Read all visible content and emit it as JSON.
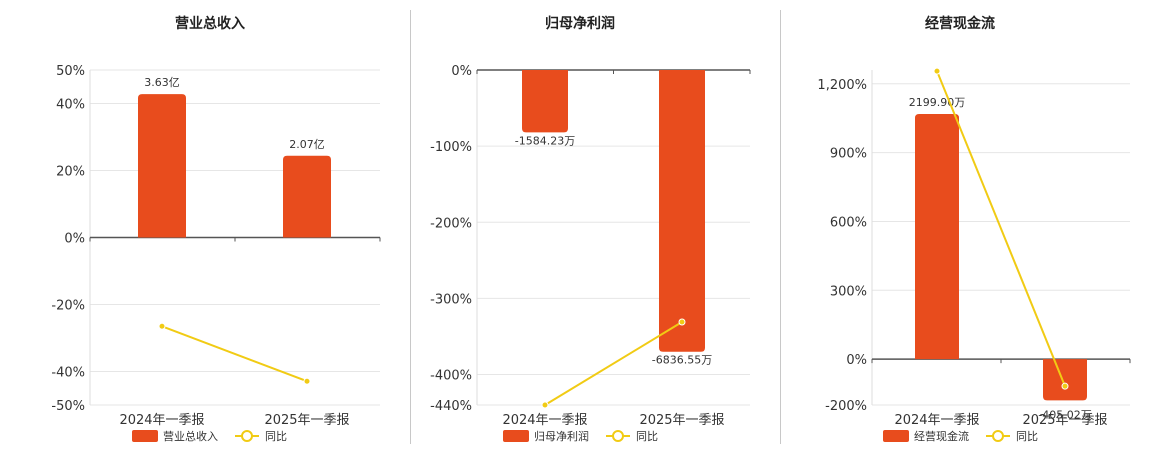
{
  "colors": {
    "bar": "#e84c1d",
    "line": "#f1cb14",
    "grid": "#e6e6e6",
    "axis": "#555555"
  },
  "chart_data": [
    {
      "type": "bar",
      "title": "营业总收入",
      "categories": [
        "2024年一季报",
        "2025年一季报"
      ],
      "ylim": [
        -50,
        50
      ],
      "yticks": [
        {
          "value": 50,
          "label": "50%"
        },
        {
          "value": 40,
          "label": "40%"
        },
        {
          "value": 20,
          "label": "20%"
        },
        {
          "value": 0,
          "label": "0%"
        },
        {
          "value": -20,
          "label": "-20%"
        },
        {
          "value": -40,
          "label": "-40%"
        },
        {
          "value": -50,
          "label": "-50%"
        }
      ],
      "series": [
        {
          "name": "营业总收入",
          "kind": "bar",
          "values": [
            3.63,
            2.07
          ],
          "data_labels": [
            "3.63亿",
            "2.07亿"
          ],
          "bar_pct": [
            42.8,
            24.4
          ]
        },
        {
          "name": "同比",
          "kind": "line",
          "values": [
            -26.5,
            -42.9
          ]
        }
      ],
      "legend": [
        "营业总收入",
        "同比"
      ],
      "legend_position": "bottom"
    },
    {
      "type": "bar",
      "title": "归母净利润",
      "categories": [
        "2024年一季报",
        "2025年一季报"
      ],
      "ylim": [
        -440,
        0
      ],
      "yticks": [
        {
          "value": 0,
          "label": "0%"
        },
        {
          "value": -100,
          "label": "-100%"
        },
        {
          "value": -200,
          "label": "-200%"
        },
        {
          "value": -300,
          "label": "-300%"
        },
        {
          "value": -400,
          "label": "-400%"
        },
        {
          "value": -440,
          "label": "-440%"
        }
      ],
      "series": [
        {
          "name": "归母净利润",
          "kind": "bar",
          "values": [
            -1584.23,
            -6836.55
          ],
          "data_labels": [
            "-1584.23万",
            "-6836.55万"
          ],
          "bar_pct": [
            -82,
            -370
          ]
        },
        {
          "name": "同比",
          "kind": "line",
          "values": [
            -440,
            -331
          ]
        }
      ],
      "legend": [
        "归母净利润",
        "同比"
      ],
      "legend_position": "bottom"
    },
    {
      "type": "bar",
      "title": "经营现金流",
      "categories": [
        "2024年一季报",
        "2025年一季报"
      ],
      "ylim": [
        -200,
        1260
      ],
      "yticks": [
        {
          "value": 1200,
          "label": "1,200%"
        },
        {
          "value": 900,
          "label": "900%"
        },
        {
          "value": 600,
          "label": "600%"
        },
        {
          "value": 300,
          "label": "300%"
        },
        {
          "value": 0,
          "label": "0%"
        },
        {
          "value": -200,
          "label": "-200%"
        }
      ],
      "series": [
        {
          "name": "经营现金流",
          "kind": "bar",
          "values": [
            2199.9,
            -405.02
          ],
          "data_labels": [
            "2199.90万",
            "-405.02万"
          ],
          "bar_pct": [
            1068,
            -180
          ]
        },
        {
          "name": "同比",
          "kind": "line",
          "values": [
            1255,
            -118
          ]
        }
      ],
      "legend": [
        "经营现金流",
        "同比"
      ],
      "legend_position": "bottom"
    }
  ]
}
